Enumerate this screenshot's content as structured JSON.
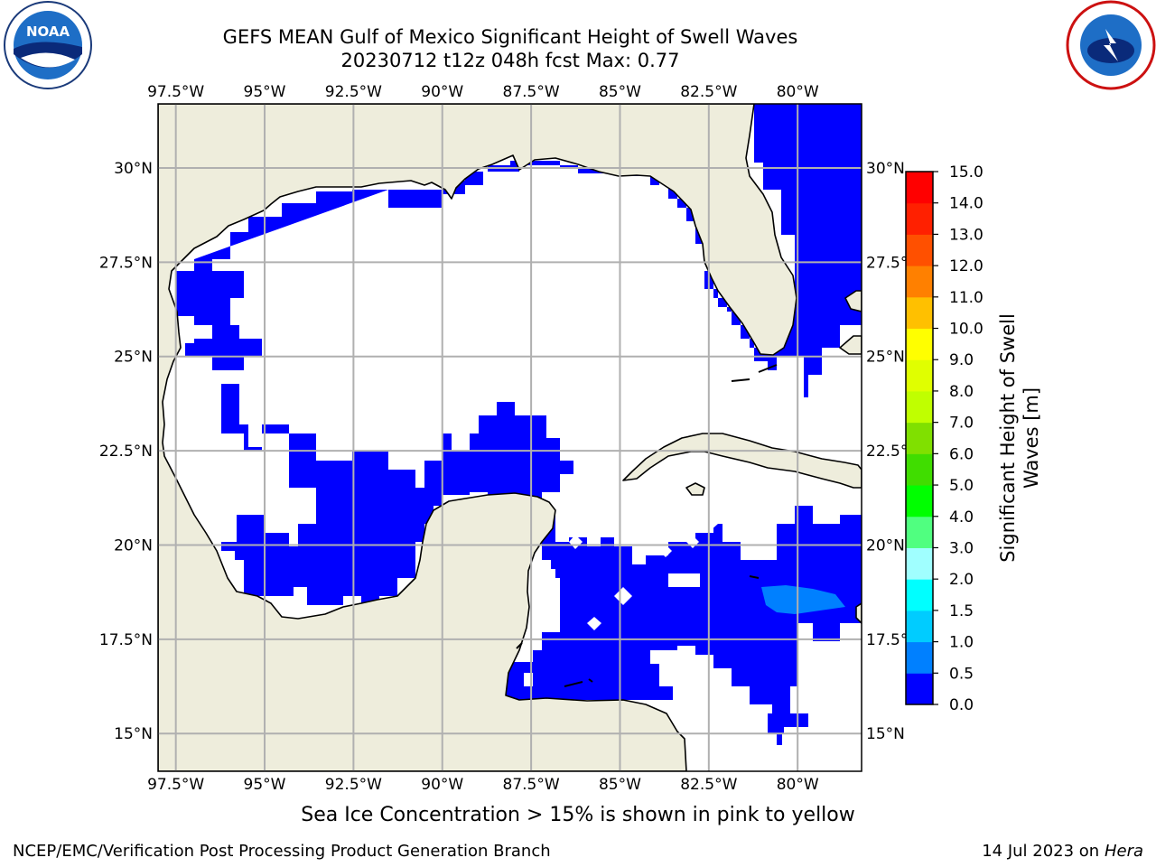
{
  "title": {
    "line1": "GEFS MEAN Gulf of Mexico Significant Height of Swell Waves",
    "line2": "20230712 t12z 048h fcst   Max: 0.77"
  },
  "logos": {
    "left": "noaa-logo",
    "left_text": "NOAA",
    "left_ring_text": "NATIONAL OCEANIC AND ATMOSPHERIC ADMINISTRATION · U.S. DEPARTMENT OF COMMERCE",
    "right": "national-weather-service-logo",
    "right_ring_text": "NATIONAL WEATHER SERVICE"
  },
  "map": {
    "lon_range": [
      -98,
      -78.2
    ],
    "lat_range": [
      14.0,
      31.7
    ],
    "lon_ticks": [
      "97.5°W",
      "95°W",
      "92.5°W",
      "90°W",
      "87.5°W",
      "85°W",
      "82.5°W",
      "80°W"
    ],
    "lon_tick_values": [
      -97.5,
      -95,
      -92.5,
      -90,
      -87.5,
      -85,
      -82.5,
      -80
    ],
    "lat_ticks": [
      "30°N",
      "27.5°N",
      "25°N",
      "22.5°N",
      "20°N",
      "17.5°N",
      "15°N"
    ],
    "lat_tick_values": [
      30,
      27.5,
      25,
      22.5,
      20,
      17.5,
      15
    ],
    "colors": {
      "land": "#eeeddc",
      "ocean_no_data": "#ffffff",
      "swell_0_0.5": "#0000ff",
      "swell_0.5_1.0": "#0080ff",
      "grid": "#b0b0b0",
      "coast": "#000000"
    }
  },
  "colorbar": {
    "label": "Significant Height of Swell Waves [m]",
    "ticks": [
      "0.0",
      "0.5",
      "1.0",
      "1.5",
      "2.0",
      "3.0",
      "4.0",
      "5.0",
      "6.0",
      "7.0",
      "8.0",
      "9.0",
      "10.0",
      "11.0",
      "12.0",
      "13.0",
      "14.0",
      "15.0"
    ],
    "colors": [
      "#0000ff",
      "#0080ff",
      "#00ccff",
      "#00ffff",
      "#40ffff",
      "#a0ffff",
      "#50ff80",
      "#00ff00",
      "#40dd00",
      "#80e000",
      "#c0ff00",
      "#e0ff00",
      "#ffff00",
      "#ffe000",
      "#ffc000",
      "#ff8000",
      "#ff5000",
      "#ff2000",
      "#ff0000"
    ]
  },
  "note": "Sea Ice Concentration > 15% is shown in pink to yellow",
  "footer": {
    "left": "NCEP/EMC/Verification Post Processing Product Generation Branch",
    "date": "14 Jul 2023 on ",
    "machine": "Hera"
  }
}
